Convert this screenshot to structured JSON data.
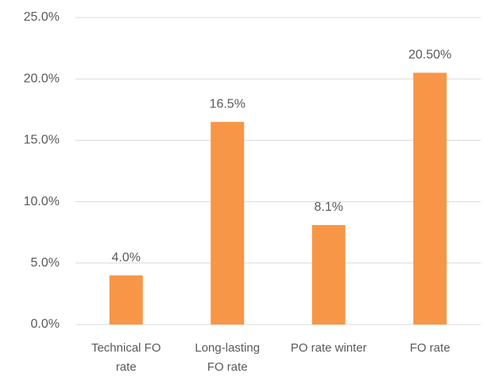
{
  "chart_data": {
    "type": "bar",
    "categories": [
      "Technical FO rate",
      "Long-lasting FO rate",
      "PO rate winter",
      "FO rate"
    ],
    "values": [
      4.0,
      16.5,
      8.1,
      20.5
    ],
    "value_labels": [
      "4.0%",
      "16.5%",
      "8.1%",
      "20.50%"
    ],
    "color": "#f79646",
    "ylim": [
      0,
      25
    ],
    "yticks": [
      {
        "value": 0,
        "label": "0.0%"
      },
      {
        "value": 5,
        "label": "5.0%"
      },
      {
        "value": 10,
        "label": "10.0%"
      },
      {
        "value": 15,
        "label": "15.0%"
      },
      {
        "value": 20,
        "label": "20.0%"
      },
      {
        "value": 25,
        "label": "25.0%"
      }
    ],
    "grid": true
  }
}
